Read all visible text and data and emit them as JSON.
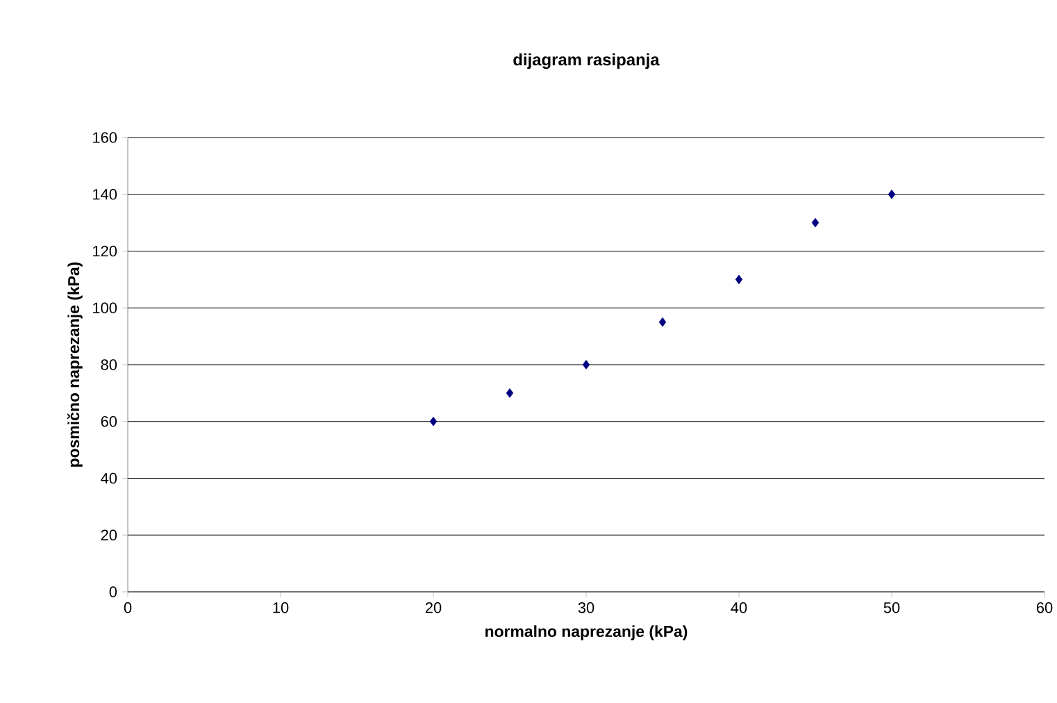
{
  "chart_data": {
    "type": "scatter",
    "title": "dijagram rasipanja",
    "xlabel": "normalno naprezanje (kPa)",
    "ylabel": "posmično naprezanje (kPa)",
    "x": [
      20,
      25,
      30,
      35,
      40,
      45,
      50
    ],
    "values": [
      60,
      70,
      80,
      95,
      110,
      130,
      140
    ],
    "color": "#000080",
    "xlim": [
      0,
      60
    ],
    "xticks": [
      0,
      10,
      20,
      30,
      40,
      50,
      60
    ],
    "ylim": [
      0,
      160
    ],
    "yticks": [
      0,
      20,
      40,
      60,
      80,
      100,
      120,
      140,
      160
    ],
    "grid": "y",
    "marker": "diamond"
  }
}
